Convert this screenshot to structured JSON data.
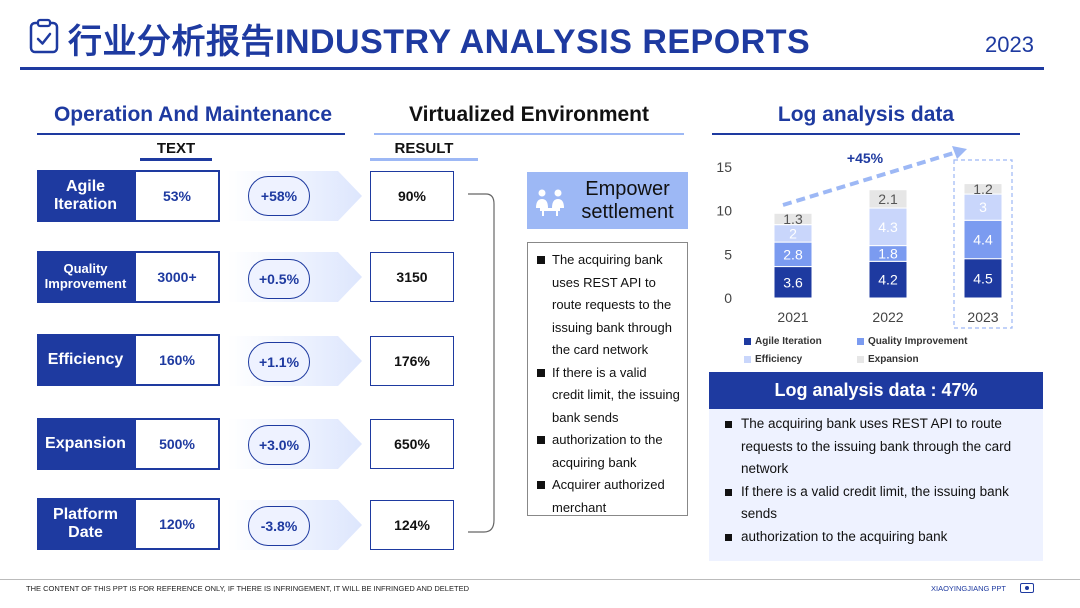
{
  "header": {
    "title": "行业分析报告INDUSTRY ANALYSIS REPORTS",
    "year": "2023",
    "icon": "clipboard-icon"
  },
  "left": {
    "heading": "Operation And Maintenance",
    "subheading": "TEXT",
    "rows": [
      {
        "label": "Agile Iteration",
        "value": "53%",
        "change": "+58%"
      },
      {
        "label": "Quality Improvement",
        "value": "3000+",
        "change": "+0.5%"
      },
      {
        "label": "Efficiency",
        "value": "160%",
        "change": "+1.1%"
      },
      {
        "label": "Expansion",
        "value": "500%",
        "change": "+3.0%"
      },
      {
        "label": "Platform Date",
        "value": "120%",
        "change": "-3.8%"
      }
    ]
  },
  "middle": {
    "heading": "Virtualized Environment",
    "subheading": "RESULT",
    "results": [
      "90%",
      "3150",
      "176%",
      "650%",
      "124%"
    ],
    "empower_title": "Empower settlement",
    "empower_icon": "people-icon",
    "bullets": [
      "The acquiring bank uses REST API to route requests to the issuing bank through the card network",
      "If there is a valid credit limit, the issuing bank sends",
      " authorization to the acquiring bank",
      "Acquirer authorized merchant"
    ]
  },
  "right": {
    "heading": "Log analysis data",
    "banner": "Log analysis data : 47%",
    "bullets": [
      "The acquiring bank uses REST API to route requests to the issuing bank through the card network",
      "If there is a valid credit limit, the issuing bank sends",
      " authorization to the acquiring bank"
    ]
  },
  "chart_data": {
    "type": "bar",
    "stacked": true,
    "categories": [
      "2021",
      "2022",
      "2023"
    ],
    "series": [
      {
        "name": "Agile Iteration",
        "values": [
          3.6,
          4.2,
          4.5
        ],
        "color": "#1e3aa0"
      },
      {
        "name": "Quality Improvement",
        "values": [
          2.8,
          1.8,
          4.4
        ],
        "color": "#7b9bf0"
      },
      {
        "name": "Efficiency",
        "values": [
          2,
          4.3,
          3
        ],
        "color": "#c9d6fb"
      },
      {
        "name": "Expansion",
        "values": [
          1.3,
          2.1,
          1.2
        ],
        "color": "#e6e6e6"
      }
    ],
    "yticks": [
      0,
      5,
      10,
      15
    ],
    "ylim": [
      0,
      15
    ],
    "annotation": "+45%",
    "highlight": "2023",
    "legend_position": "bottom"
  },
  "footer": {
    "left": "THE CONTENT OF THIS PPT IS FOR REFERENCE ONLY, IF THERE IS INFRINGEMENT, IT WILL BE INFRINGED AND DELETED",
    "right": "XIAOYINGJIANG PPT"
  }
}
